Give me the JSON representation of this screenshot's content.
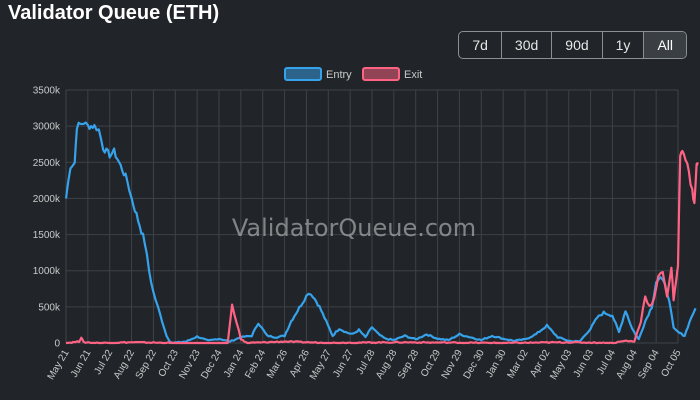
{
  "header": {
    "title": "Validator Queue (ETH)",
    "ranges": [
      {
        "label": "7d",
        "active": false
      },
      {
        "label": "30d",
        "active": false
      },
      {
        "label": "90d",
        "active": false
      },
      {
        "label": "1y",
        "active": false
      },
      {
        "label": "All",
        "active": true
      }
    ]
  },
  "watermark": "ValidatorQueue.com",
  "chart_data": {
    "type": "line",
    "grid": true,
    "legend_position": "top-center",
    "y_ticks": [
      "0",
      "500k",
      "1000k",
      "1500k",
      "2000k",
      "2500k",
      "3000k",
      "3500k"
    ],
    "ylim": [
      0,
      3500000
    ],
    "x_ticks": [
      "May 21",
      "Jun 21",
      "Jul 22",
      "Aug 22",
      "Sep 22",
      "Oct 23",
      "Nov 23",
      "Dec 24",
      "Jan 24",
      "Feb 24",
      "Mar 26",
      "Apr 26",
      "May 27",
      "Jun 27",
      "Jul 28",
      "Aug 28",
      "Sep 28",
      "Oct 29",
      "Nov 29",
      "Dec 30",
      "Jan 30",
      "Mar 02",
      "Apr 02",
      "May 03",
      "Jun 03",
      "Jul 04",
      "Aug 04",
      "Sep 04",
      "Oct 05"
    ],
    "series": [
      {
        "name": "Entry",
        "color": "#36a2eb",
        "points": [
          [
            0,
            2000000
          ],
          [
            0.2,
            2450000
          ],
          [
            0.4,
            2500000
          ],
          [
            0.5,
            3000000
          ],
          [
            0.8,
            3050000
          ],
          [
            1.0,
            3000000
          ],
          [
            1.3,
            3000000
          ],
          [
            1.5,
            2950000
          ],
          [
            1.7,
            2700000
          ],
          [
            2.0,
            2600000
          ],
          [
            2.2,
            2650000
          ],
          [
            2.5,
            2450000
          ],
          [
            2.8,
            2250000
          ],
          [
            3.0,
            2000000
          ],
          [
            3.3,
            1700000
          ],
          [
            3.6,
            1400000
          ],
          [
            3.8,
            1000000
          ],
          [
            4.0,
            700000
          ],
          [
            4.2,
            500000
          ],
          [
            4.4,
            300000
          ],
          [
            4.6,
            100000
          ],
          [
            4.8,
            0
          ],
          [
            5.5,
            20000
          ],
          [
            6.0,
            90000
          ],
          [
            6.5,
            30000
          ],
          [
            7.0,
            60000
          ],
          [
            7.5,
            20000
          ],
          [
            8.0,
            80000
          ],
          [
            8.5,
            100000
          ],
          [
            8.8,
            280000
          ],
          [
            9.2,
            100000
          ],
          [
            9.6,
            80000
          ],
          [
            10.0,
            100000
          ],
          [
            10.3,
            300000
          ],
          [
            10.6,
            450000
          ],
          [
            10.9,
            600000
          ],
          [
            11.1,
            700000
          ],
          [
            11.3,
            650000
          ],
          [
            11.6,
            500000
          ],
          [
            11.9,
            300000
          ],
          [
            12.2,
            100000
          ],
          [
            12.5,
            200000
          ],
          [
            12.8,
            150000
          ],
          [
            13.1,
            120000
          ],
          [
            13.4,
            180000
          ],
          [
            13.7,
            80000
          ],
          [
            14.0,
            220000
          ],
          [
            14.3,
            120000
          ],
          [
            14.6,
            60000
          ],
          [
            15.0,
            40000
          ],
          [
            15.5,
            100000
          ],
          [
            16.0,
            50000
          ],
          [
            16.5,
            120000
          ],
          [
            17.0,
            60000
          ],
          [
            17.5,
            40000
          ],
          [
            18.0,
            120000
          ],
          [
            18.5,
            80000
          ],
          [
            19.0,
            40000
          ],
          [
            19.5,
            100000
          ],
          [
            20.0,
            60000
          ],
          [
            20.5,
            30000
          ],
          [
            21.0,
            50000
          ],
          [
            21.5,
            120000
          ],
          [
            22.0,
            240000
          ],
          [
            22.5,
            80000
          ],
          [
            23.0,
            30000
          ],
          [
            23.5,
            20000
          ],
          [
            24.0,
            200000
          ],
          [
            24.3,
            350000
          ],
          [
            24.6,
            420000
          ],
          [
            25.0,
            380000
          ],
          [
            25.3,
            150000
          ],
          [
            25.6,
            450000
          ],
          [
            25.9,
            200000
          ],
          [
            26.2,
            50000
          ],
          [
            26.5,
            300000
          ],
          [
            26.8,
            500000
          ],
          [
            27.0,
            850000
          ],
          [
            27.2,
            900000
          ],
          [
            27.4,
            800000
          ],
          [
            27.6,
            600000
          ],
          [
            27.8,
            200000
          ],
          [
            28.0,
            150000
          ],
          [
            28.3,
            100000
          ],
          [
            28.6,
            350000
          ],
          [
            28.8,
            480000
          ]
        ]
      },
      {
        "name": "Exit",
        "color": "#ff6384",
        "points": [
          [
            0,
            0
          ],
          [
            0.6,
            20000
          ],
          [
            0.7,
            80000
          ],
          [
            0.8,
            10000
          ],
          [
            1.5,
            0
          ],
          [
            3.0,
            10000
          ],
          [
            5.0,
            0
          ],
          [
            7.4,
            0
          ],
          [
            7.6,
            520000
          ],
          [
            7.8,
            300000
          ],
          [
            8.0,
            50000
          ],
          [
            8.3,
            0
          ],
          [
            10.0,
            20000
          ],
          [
            12.0,
            0
          ],
          [
            15.0,
            10000
          ],
          [
            20.0,
            0
          ],
          [
            23.0,
            10000
          ],
          [
            25.0,
            0
          ],
          [
            25.6,
            30000
          ],
          [
            26.0,
            20000
          ],
          [
            26.3,
            300000
          ],
          [
            26.5,
            650000
          ],
          [
            26.7,
            500000
          ],
          [
            26.9,
            600000
          ],
          [
            27.1,
            900000
          ],
          [
            27.3,
            1000000
          ],
          [
            27.5,
            650000
          ],
          [
            27.7,
            1050000
          ],
          [
            27.8,
            600000
          ],
          [
            27.9,
            800000
          ],
          [
            28.0,
            1100000
          ],
          [
            28.1,
            2600000
          ],
          [
            28.2,
            2700000
          ],
          [
            28.35,
            2550000
          ],
          [
            28.5,
            2350000
          ],
          [
            28.65,
            2100000
          ],
          [
            28.75,
            1950000
          ],
          [
            28.85,
            2450000
          ],
          [
            28.9,
            2500000
          ]
        ]
      }
    ]
  }
}
